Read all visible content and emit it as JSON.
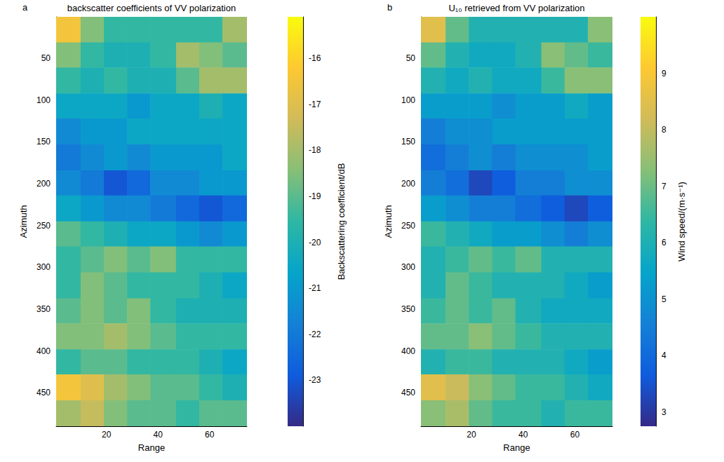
{
  "chart_data": [
    {
      "type": "heatmap",
      "panel_label": "a",
      "title": "backscatter coefficients of VV polarization",
      "x_label": "Range",
      "y_label": "Azimuth",
      "xlim": [
        0.5,
        74.5
      ],
      "xticks": [
        20,
        40,
        60
      ],
      "ylim": [
        0.5,
        490
      ],
      "yticks": [
        50,
        100,
        150,
        200,
        250,
        300,
        350,
        400,
        450
      ],
      "x_edges": [
        0.5,
        10,
        19,
        28,
        37,
        47,
        56,
        65,
        74.5
      ],
      "y_edges": [
        0.5,
        31,
        61,
        92,
        122,
        153,
        184,
        214,
        245,
        275,
        306,
        337,
        367,
        398,
        428,
        459,
        490
      ],
      "cells": [
        [
          -16.5,
          -18.5,
          -19.5,
          -19.5,
          -19.5,
          -19.5,
          -19.5,
          -18
        ],
        [
          -18.5,
          -19.5,
          -20,
          -20,
          -19.5,
          -18,
          -18.5,
          -19
        ],
        [
          -19.5,
          -20,
          -19.5,
          -20,
          -20,
          -19,
          -18,
          -18
        ],
        [
          -20.5,
          -20.5,
          -20.5,
          -21,
          -20.5,
          -20.5,
          -20,
          -20.5
        ],
        [
          -21.5,
          -21,
          -21,
          -20.5,
          -20.5,
          -20.5,
          -20.5,
          -20.5
        ],
        [
          -22,
          -21.5,
          -21,
          -21.5,
          -21,
          -21,
          -21,
          -20.5
        ],
        [
          -21.5,
          -22,
          -23,
          -22.5,
          -21.5,
          -21.5,
          -21,
          -21
        ],
        [
          -20.5,
          -21,
          -21.5,
          -21.5,
          -22,
          -22.5,
          -23,
          -22.5
        ],
        [
          -19,
          -19.5,
          -20,
          -20.5,
          -20.5,
          -21,
          -21.5,
          -21
        ],
        [
          -19.5,
          -19,
          -18.5,
          -19,
          -18.5,
          -19.5,
          -19.5,
          -19.5
        ],
        [
          -19.5,
          -18.5,
          -19,
          -19.5,
          -19.5,
          -19.5,
          -20,
          -20.5
        ],
        [
          -19,
          -18.5,
          -19,
          -18.5,
          -19.5,
          -20,
          -20,
          -20
        ],
        [
          -18.5,
          -18.5,
          -18,
          -18.5,
          -19,
          -19.5,
          -19.5,
          -19.5
        ],
        [
          -19.5,
          -19,
          -19,
          -19.5,
          -19.5,
          -19.5,
          -20,
          -20.5
        ],
        [
          -16.5,
          -17,
          -18,
          -18.5,
          -19,
          -19,
          -19.5,
          -20
        ],
        [
          -18,
          -17.5,
          -18.5,
          -19,
          -19,
          -19.5,
          -19,
          -19
        ]
      ],
      "colorbar": {
        "label": "Backscattering coefficient/dB",
        "range": [
          -24,
          -15.1
        ],
        "ticks": [
          -23,
          -22,
          -21,
          -20,
          -19,
          -18,
          -17,
          -16
        ]
      }
    },
    {
      "type": "heatmap",
      "panel_label": "b",
      "title": "U₁₀ retrieved from VV polarization",
      "x_label": "Range",
      "y_label": "Azimuth",
      "xlim": [
        0.5,
        74.5
      ],
      "xticks": [
        20,
        40,
        60
      ],
      "ylim": [
        0.5,
        490
      ],
      "yticks": [
        50,
        100,
        150,
        200,
        250,
        300,
        350,
        400,
        450
      ],
      "x_edges": [
        0.5,
        10,
        19,
        28,
        37,
        47,
        56,
        65,
        74.5
      ],
      "y_edges": [
        0.5,
        31,
        61,
        92,
        122,
        153,
        184,
        214,
        245,
        275,
        306,
        337,
        367,
        398,
        428,
        459,
        490
      ],
      "cells": [
        [
          8.5,
          6.9,
          6.1,
          6.1,
          6.1,
          6.1,
          6.1,
          7.3
        ],
        [
          6.9,
          6.1,
          5.7,
          5.7,
          6.1,
          7.3,
          6.9,
          6.5
        ],
        [
          6.1,
          5.7,
          6.1,
          5.7,
          5.7,
          6.5,
          7.3,
          7.3
        ],
        [
          5.3,
          5.3,
          5.3,
          4.9,
          5.3,
          5.3,
          5.7,
          5.3
        ],
        [
          4.5,
          4.9,
          4.9,
          5.3,
          5.3,
          5.3,
          5.3,
          5.3
        ],
        [
          4.1,
          4.5,
          4.9,
          4.5,
          4.9,
          4.9,
          4.9,
          5.3
        ],
        [
          4.5,
          4.1,
          3.3,
          3.7,
          4.5,
          4.5,
          4.9,
          4.9
        ],
        [
          5.3,
          4.9,
          4.5,
          4.5,
          4.1,
          3.7,
          3.3,
          3.7
        ],
        [
          6.5,
          6.1,
          5.7,
          5.3,
          5.3,
          4.9,
          4.5,
          4.9
        ],
        [
          6.1,
          6.5,
          6.9,
          6.5,
          6.9,
          6.1,
          6.1,
          6.1
        ],
        [
          6.1,
          6.9,
          6.5,
          6.1,
          6.1,
          6.1,
          5.7,
          5.3
        ],
        [
          6.5,
          6.9,
          6.5,
          6.9,
          6.1,
          5.7,
          5.7,
          5.7
        ],
        [
          6.9,
          6.9,
          7.3,
          6.9,
          6.5,
          6.1,
          6.1,
          6.1
        ],
        [
          6.1,
          6.5,
          6.5,
          6.1,
          6.1,
          6.1,
          5.7,
          5.3
        ],
        [
          8.5,
          8.1,
          7.3,
          6.9,
          6.5,
          6.5,
          6.1,
          5.7
        ],
        [
          7.3,
          7.7,
          6.9,
          6.5,
          6.5,
          6.1,
          6.5,
          6.5
        ]
      ],
      "colorbar": {
        "label": "Wind speed/(m·s⁻¹)",
        "range": [
          2.75,
          10
        ],
        "ticks": [
          3,
          4,
          5,
          6,
          7,
          8,
          9
        ]
      }
    }
  ]
}
